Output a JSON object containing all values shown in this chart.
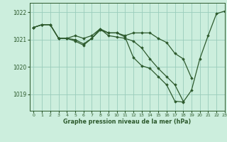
{
  "title": "Graphe pression niveau de la mer (hPa)",
  "bg_color": "#cceedd",
  "grid_color": "#99ccbb",
  "line_color": "#2d5a2d",
  "xlim": [
    -0.5,
    23
  ],
  "ylim": [
    1018.4,
    1022.35
  ],
  "yticks": [
    1019,
    1020,
    1021,
    1022
  ],
  "xticks": [
    0,
    1,
    2,
    3,
    4,
    5,
    6,
    7,
    8,
    9,
    10,
    11,
    12,
    13,
    14,
    15,
    16,
    17,
    18,
    19,
    20,
    21,
    22,
    23
  ],
  "series": [
    {
      "x": [
        0,
        1,
        2,
        3,
        4,
        5,
        6,
        7,
        8,
        9,
        10,
        11,
        12,
        13,
        14,
        15,
        16,
        17,
        18,
        19,
        20,
        21,
        22,
        23
      ],
      "y": [
        1021.45,
        1021.55,
        1021.55,
        1021.05,
        1021.05,
        1021.0,
        1020.85,
        1021.05,
        1021.35,
        1021.25,
        1021.25,
        1021.1,
        1020.35,
        1020.05,
        1019.95,
        1019.65,
        1019.35,
        1018.75,
        1018.72,
        1019.15,
        1020.3,
        1021.15,
        1021.95,
        1022.05
      ]
    },
    {
      "x": [
        0,
        1,
        2,
        3,
        4,
        5,
        6,
        7,
        8,
        9,
        10,
        11,
        12,
        13,
        14,
        15,
        16,
        17,
        18,
        19
      ],
      "y": [
        1021.45,
        1021.55,
        1021.55,
        1021.05,
        1021.05,
        1021.15,
        1021.05,
        1021.15,
        1021.4,
        1021.25,
        1021.25,
        1021.15,
        1021.25,
        1021.25,
        1021.25,
        1021.05,
        1020.9,
        1020.5,
        1020.3,
        1019.6
      ]
    },
    {
      "x": [
        0,
        1,
        2,
        3,
        4,
        5,
        6,
        7,
        8,
        9,
        10,
        11,
        12,
        13,
        14,
        15,
        16,
        17,
        18
      ],
      "y": [
        1021.45,
        1021.55,
        1021.55,
        1021.05,
        1021.05,
        1020.95,
        1020.8,
        1021.05,
        1021.4,
        1021.15,
        1021.1,
        1021.05,
        1020.95,
        1020.7,
        1020.3,
        1019.95,
        1019.65,
        1019.35,
        1018.75
      ]
    }
  ]
}
